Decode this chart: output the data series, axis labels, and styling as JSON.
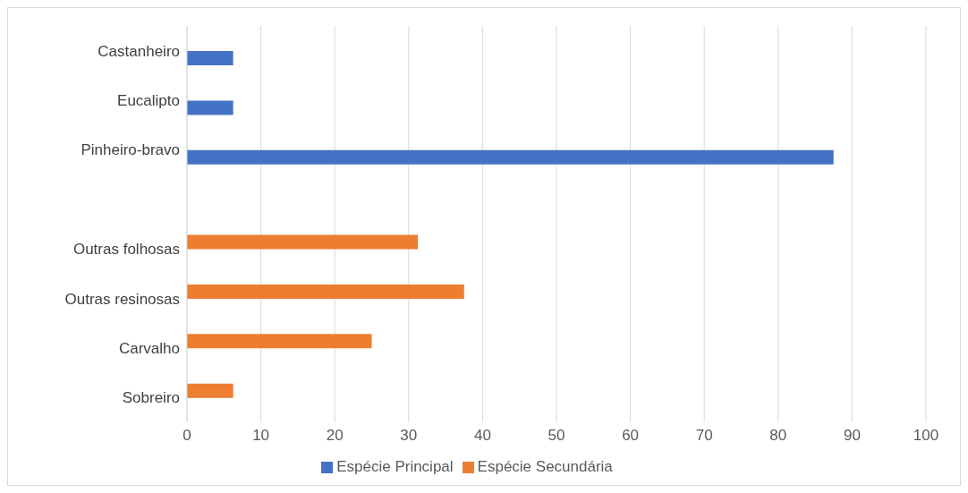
{
  "chart_data": {
    "type": "bar",
    "orientation": "horizontal",
    "categories": [
      "Castanheiro",
      "Eucalipto",
      "Pinheiro-bravo",
      null,
      "Outras folhosas",
      "Outras resinosas",
      "Carvalho",
      "Sobreiro"
    ],
    "series": [
      {
        "name": "Espécie Secundária",
        "color": "#ed7d31",
        "values": [
          null,
          null,
          null,
          null,
          31.25,
          37.5,
          25,
          6.25
        ]
      },
      {
        "name": "Espécie Principal",
        "color": "#4472c4",
        "values": [
          6.25,
          6.25,
          87.5,
          null,
          null,
          null,
          null,
          null
        ]
      }
    ],
    "xlim": [
      0,
      100
    ],
    "xticks": [
      0,
      10,
      20,
      30,
      40,
      50,
      60,
      70,
      80,
      90,
      100
    ],
    "grid": "x",
    "legend": "bottom"
  }
}
